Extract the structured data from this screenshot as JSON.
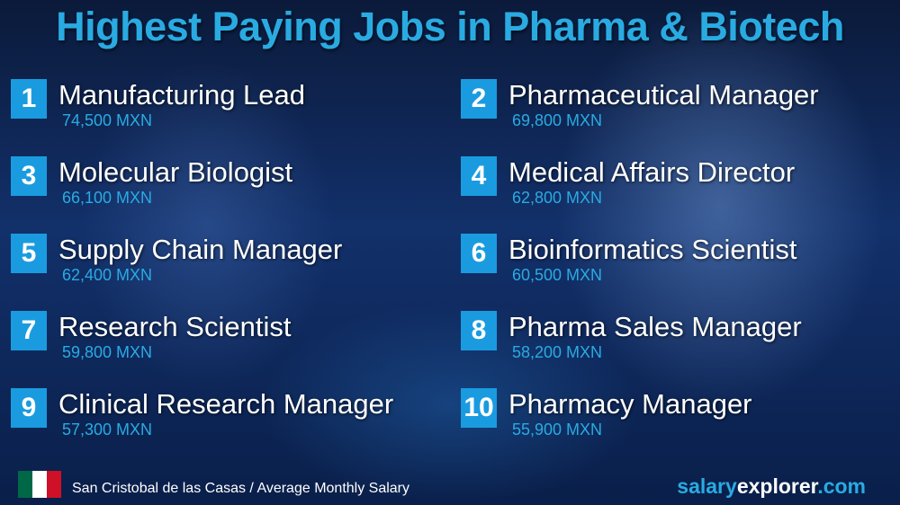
{
  "header": {
    "title": "Highest Paying Jobs in Pharma & Biotech"
  },
  "jobs": [
    {
      "rank": "1",
      "title": "Manufacturing Lead",
      "salary": "74,500 MXN"
    },
    {
      "rank": "2",
      "title": "Pharmaceutical Manager",
      "salary": "69,800 MXN"
    },
    {
      "rank": "3",
      "title": "Molecular Biologist",
      "salary": "66,100 MXN"
    },
    {
      "rank": "4",
      "title": "Medical Affairs Director",
      "salary": "62,800 MXN"
    },
    {
      "rank": "5",
      "title": "Supply Chain Manager",
      "salary": "62,400 MXN"
    },
    {
      "rank": "6",
      "title": "Bioinformatics Scientist",
      "salary": "60,500 MXN"
    },
    {
      "rank": "7",
      "title": "Research Scientist",
      "salary": "59,800 MXN"
    },
    {
      "rank": "8",
      "title": "Pharma Sales Manager",
      "salary": "58,200 MXN"
    },
    {
      "rank": "9",
      "title": "Clinical Research Manager",
      "salary": "57,300 MXN"
    },
    {
      "rank": "10",
      "title": "Pharmacy Manager",
      "salary": "55,900 MXN"
    }
  ],
  "footer": {
    "location": "San Cristobal de las Casas / Average Monthly Salary",
    "brand": {
      "part1": "salary",
      "part2": "explorer",
      "part3": ".com"
    }
  }
}
